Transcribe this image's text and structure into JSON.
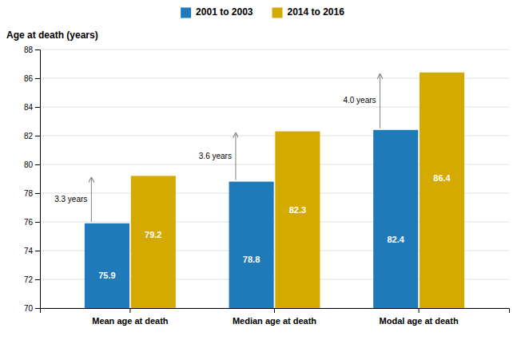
{
  "chart_data": {
    "type": "bar",
    "y_label": "Age at death (years)",
    "categories": [
      "Mean age at death",
      "Median age at death",
      "Modal age at death"
    ],
    "series": [
      {
        "name": "2001 to 2003",
        "color": "#1e7ab8",
        "values": [
          75.9,
          78.8,
          82.4
        ]
      },
      {
        "name": "2014 to 2016",
        "color": "#d4a900",
        "values": [
          79.2,
          82.3,
          86.4
        ]
      }
    ],
    "annotations": [
      "3.3 years",
      "3.6 years",
      "4.0 years"
    ],
    "ylim": [
      70,
      88
    ],
    "yticks": [
      70,
      72,
      74,
      76,
      78,
      80,
      82,
      84,
      86,
      88
    ],
    "grid": true,
    "legend": "top",
    "data_labels": true
  }
}
